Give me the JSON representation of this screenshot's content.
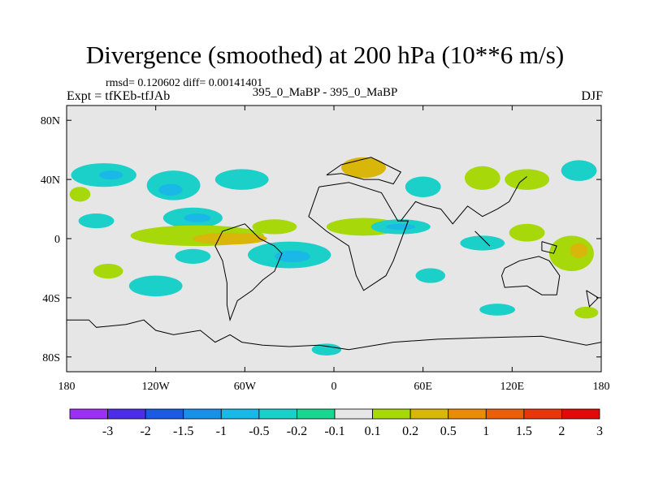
{
  "title": "Divergence (smoothed) at 200 hPa (10**6 m/s)",
  "stats": "rmsd= 0.120602 diff= 0.00141401",
  "expt": "Expt = tfKEb-tfJAb",
  "center_label": "395_0_MaBP - 395_0_MaBP",
  "season": "DJF",
  "map": {
    "lon_range": [
      -180,
      180
    ],
    "lat_range": [
      -90,
      90
    ],
    "background_color": "#e6e6e6",
    "x_ticks": [
      {
        "value": -180,
        "label": "180"
      },
      {
        "value": -120,
        "label": "120W"
      },
      {
        "value": -60,
        "label": "60W"
      },
      {
        "value": 0,
        "label": "0"
      },
      {
        "value": 60,
        "label": "60E"
      },
      {
        "value": 120,
        "label": "120E"
      },
      {
        "value": 180,
        "label": "180"
      }
    ],
    "y_ticks": [
      {
        "value": 80,
        "label": "80N"
      },
      {
        "value": 40,
        "label": "40N"
      },
      {
        "value": 0,
        "label": "0"
      },
      {
        "value": -40,
        "label": "40S"
      },
      {
        "value": -80,
        "label": "80S"
      }
    ],
    "field_blobs": [
      {
        "lon": -171,
        "lat": 30,
        "rx": 7,
        "ry": 5,
        "level": 0.2
      },
      {
        "lon": -155,
        "lat": 43,
        "rx": 22,
        "ry": 8,
        "level": -0.2
      },
      {
        "lon": -150,
        "lat": 43,
        "rx": 8,
        "ry": 3,
        "level": -0.5
      },
      {
        "lon": -108,
        "lat": 36,
        "rx": 18,
        "ry": 10,
        "level": -0.2
      },
      {
        "lon": -110,
        "lat": 33,
        "rx": 8,
        "ry": 4,
        "level": -0.5
      },
      {
        "lon": -62,
        "lat": 40,
        "rx": 18,
        "ry": 7,
        "level": -0.2
      },
      {
        "lon": -95,
        "lat": 14,
        "rx": 20,
        "ry": 7,
        "level": -0.2
      },
      {
        "lon": -92,
        "lat": 14,
        "rx": 9,
        "ry": 3,
        "level": -0.5
      },
      {
        "lon": -160,
        "lat": 12,
        "rx": 12,
        "ry": 5,
        "level": -0.2
      },
      {
        "lon": -92,
        "lat": 2,
        "rx": 45,
        "ry": 7,
        "level": 0.2
      },
      {
        "lon": -70,
        "lat": 0,
        "rx": 25,
        "ry": 4,
        "level": 0.5
      },
      {
        "lon": -40,
        "lat": 8,
        "rx": 15,
        "ry": 5,
        "level": 0.2
      },
      {
        "lon": -30,
        "lat": -11,
        "rx": 28,
        "ry": 9,
        "level": -0.2
      },
      {
        "lon": -28,
        "lat": -12,
        "rx": 12,
        "ry": 4,
        "level": -0.5
      },
      {
        "lon": -120,
        "lat": -32,
        "rx": 18,
        "ry": 7,
        "level": -0.2
      },
      {
        "lon": -152,
        "lat": -22,
        "rx": 10,
        "ry": 5,
        "level": 0.2
      },
      {
        "lon": -95,
        "lat": -12,
        "rx": 12,
        "ry": 5,
        "level": -0.2
      },
      {
        "lon": 20,
        "lat": 48,
        "rx": 15,
        "ry": 7,
        "level": 0.5
      },
      {
        "lon": 60,
        "lat": 35,
        "rx": 12,
        "ry": 7,
        "level": -0.2
      },
      {
        "lon": 100,
        "lat": 41,
        "rx": 12,
        "ry": 8,
        "level": 0.2
      },
      {
        "lon": 130,
        "lat": 40,
        "rx": 15,
        "ry": 7,
        "level": 0.2
      },
      {
        "lon": 165,
        "lat": 46,
        "rx": 12,
        "ry": 7,
        "level": -0.2
      },
      {
        "lon": 20,
        "lat": 8,
        "rx": 25,
        "ry": 6,
        "level": 0.2
      },
      {
        "lon": 45,
        "lat": 8,
        "rx": 20,
        "ry": 5,
        "level": -0.2
      },
      {
        "lon": 45,
        "lat": 8,
        "rx": 10,
        "ry": 2,
        "level": -0.5
      },
      {
        "lon": 100,
        "lat": -3,
        "rx": 15,
        "ry": 5,
        "level": -0.2
      },
      {
        "lon": 130,
        "lat": 4,
        "rx": 12,
        "ry": 6,
        "level": 0.2
      },
      {
        "lon": 160,
        "lat": -10,
        "rx": 15,
        "ry": 12,
        "level": 0.2
      },
      {
        "lon": 165,
        "lat": -8,
        "rx": 6,
        "ry": 5,
        "level": 0.5
      },
      {
        "lon": 65,
        "lat": -25,
        "rx": 10,
        "ry": 5,
        "level": -0.2
      },
      {
        "lon": 110,
        "lat": -48,
        "rx": 12,
        "ry": 4,
        "level": -0.2
      },
      {
        "lon": 170,
        "lat": -50,
        "rx": 8,
        "ry": 4,
        "level": 0.2
      },
      {
        "lon": -5,
        "lat": -75,
        "rx": 10,
        "ry": 4,
        "level": -0.2
      }
    ],
    "coastlines": [
      [
        [
          -180,
          -55
        ],
        [
          -165,
          -55
        ],
        [
          -160,
          -60
        ],
        [
          -140,
          -58
        ],
        [
          -128,
          -55
        ],
        [
          -120,
          -62
        ],
        [
          -108,
          -65
        ],
        [
          -90,
          -62
        ],
        [
          -80,
          -70
        ],
        [
          -70,
          -65
        ],
        [
          -62,
          -70
        ],
        [
          -48,
          -72
        ],
        [
          -30,
          -73
        ],
        [
          -10,
          -72
        ],
        [
          10,
          -75
        ],
        [
          40,
          -70
        ],
        [
          70,
          -68
        ],
        [
          100,
          -67
        ],
        [
          140,
          -66
        ],
        [
          170,
          -72
        ],
        [
          180,
          -70
        ]
      ],
      [
        [
          -50,
          0
        ],
        [
          -40,
          -5
        ],
        [
          -35,
          -10
        ],
        [
          -40,
          -22
        ],
        [
          -48,
          -28
        ],
        [
          -55,
          -35
        ],
        [
          -65,
          -42
        ],
        [
          -70,
          -55
        ],
        [
          -72,
          -45
        ],
        [
          -72,
          -30
        ],
        [
          -75,
          -15
        ],
        [
          -80,
          -5
        ],
        [
          -75,
          5
        ],
        [
          -60,
          10
        ],
        [
          -50,
          0
        ]
      ],
      [
        [
          -10,
          35
        ],
        [
          10,
          38
        ],
        [
          32,
          31
        ],
        [
          43,
          12
        ],
        [
          50,
          12
        ],
        [
          40,
          -15
        ],
        [
          35,
          -25
        ],
        [
          20,
          -35
        ],
        [
          15,
          -25
        ],
        [
          10,
          -5
        ],
        [
          -5,
          5
        ],
        [
          -17,
          15
        ],
        [
          -10,
          35
        ]
      ],
      [
        [
          -5,
          43
        ],
        [
          5,
          44
        ],
        [
          20,
          40
        ],
        [
          30,
          40
        ],
        [
          40,
          37
        ],
        [
          45,
          45
        ],
        [
          25,
          55
        ],
        [
          5,
          50
        ],
        [
          -5,
          43
        ]
      ],
      [
        [
          45,
          12
        ],
        [
          55,
          25
        ],
        [
          60,
          23
        ],
        [
          72,
          20
        ],
        [
          80,
          10
        ],
        [
          90,
          22
        ],
        [
          100,
          15
        ],
        [
          110,
          20
        ],
        [
          118,
          25
        ],
        [
          125,
          38
        ],
        [
          130,
          42
        ]
      ],
      [
        [
          115,
          -20
        ],
        [
          125,
          -15
        ],
        [
          138,
          -12
        ],
        [
          145,
          -15
        ],
        [
          152,
          -25
        ],
        [
          150,
          -38
        ],
        [
          140,
          -38
        ],
        [
          130,
          -32
        ],
        [
          115,
          -33
        ],
        [
          113,
          -25
        ],
        [
          115,
          -20
        ]
      ],
      [
        [
          140,
          -2
        ],
        [
          150,
          -5
        ],
        [
          148,
          -10
        ],
        [
          140,
          -8
        ],
        [
          140,
          -2
        ]
      ],
      [
        [
          95,
          5
        ],
        [
          105,
          -5
        ],
        [
          100,
          0
        ],
        [
          95,
          5
        ]
      ],
      [
        [
          170,
          -35
        ],
        [
          178,
          -40
        ],
        [
          172,
          -46
        ],
        [
          170,
          -35
        ]
      ]
    ]
  },
  "colorbar": {
    "labels": [
      "-3",
      "-2",
      "-1.5",
      "-1",
      "-0.5",
      "-0.2",
      "-0.1",
      "0.1",
      "0.2",
      "0.5",
      "1",
      "1.5",
      "2",
      "3"
    ],
    "colors": [
      "#9b30f0",
      "#4b2ee6",
      "#1a5be0",
      "#1a8fe8",
      "#1ab8e6",
      "#1ad0c8",
      "#1ad690",
      "#e6e6e6",
      "#a6d80a",
      "#d8b60a",
      "#e88c0a",
      "#e8600a",
      "#e6360a",
      "#e00a0a"
    ]
  }
}
